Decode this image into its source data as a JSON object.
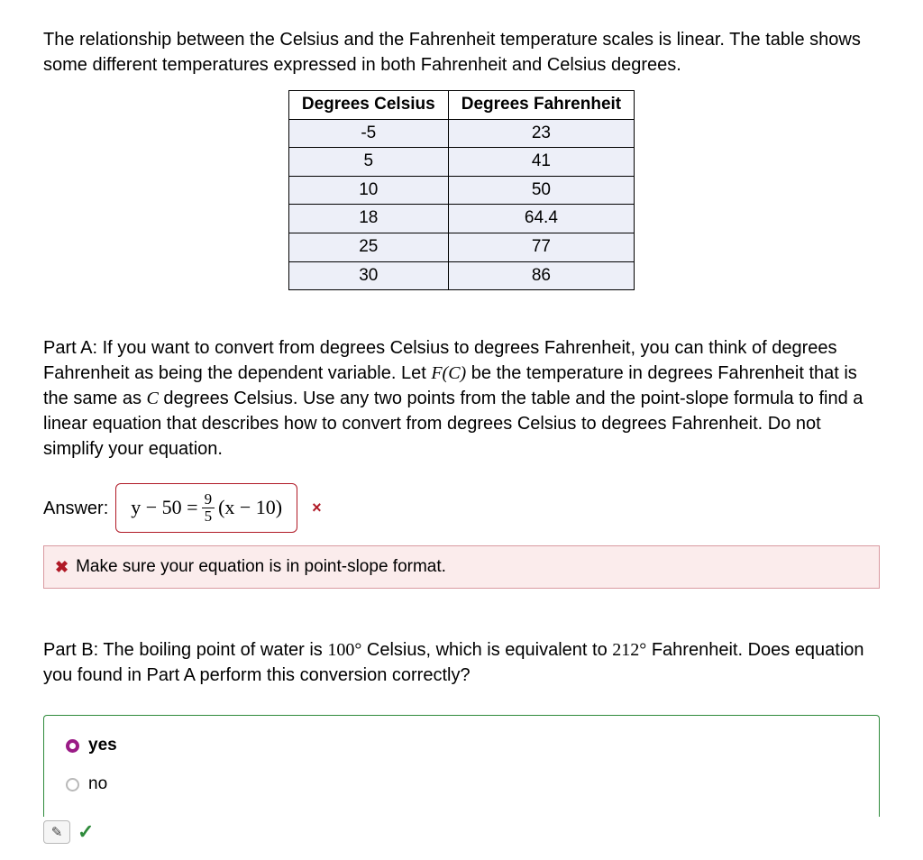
{
  "intro": "The relationship between the Celsius and the Fahrenheit temperature scales is linear. The table shows some different temperatures expressed in both Fahrenheit and Celsius degrees.",
  "table": {
    "headers": {
      "c": "Degrees Celsius",
      "f": "Degrees Fahrenheit"
    },
    "rows": [
      {
        "c": "-5",
        "f": "23"
      },
      {
        "c": "5",
        "f": "41"
      },
      {
        "c": "10",
        "f": "50"
      },
      {
        "c": "18",
        "f": "64.4"
      },
      {
        "c": "25",
        "f": "77"
      },
      {
        "c": "30",
        "f": "86"
      }
    ]
  },
  "partA": {
    "pre1": "Part A: If you want to convert from degrees Celsius to degrees Fahrenheit, you can think of degrees Fahrenheit as being the dependent variable. Let ",
    "func": "F(C)",
    "mid1": " be the temperature in degrees Fahrenheit that is the same as ",
    "var": "C",
    "post1": " degrees Celsius. Use any two points from the table and the point-slope formula to find a linear equation that describes how to convert from degrees Celsius to degrees Fahrenheit. Do not simplify your equation."
  },
  "answer": {
    "label": "Answer:",
    "lhs": "y − 50 = ",
    "frac_num": "9",
    "frac_den": "5",
    "rhs": "(x − 10)",
    "wrong_mark": "×"
  },
  "feedback": {
    "icon": "✖",
    "text": "Make sure your equation is in point-slope format."
  },
  "partB": {
    "pre": "Part B: The boiling point of water is ",
    "val1": "100°",
    "mid": " Celsius, which is equivalent to ",
    "val2": "212°",
    "post": " Fahrenheit. Does equation you found in Part A perform this conversion correctly?"
  },
  "choices": {
    "yes": "yes",
    "no": "no"
  },
  "controls": {
    "pencil": "✎",
    "check": "✓"
  },
  "colors": {
    "table_cell_bg": "#edeff8",
    "error_border": "#b01926",
    "feedback_bg": "#fbecec",
    "correct_border": "#2e8a3b",
    "radio_selected": "#9a1b86"
  }
}
